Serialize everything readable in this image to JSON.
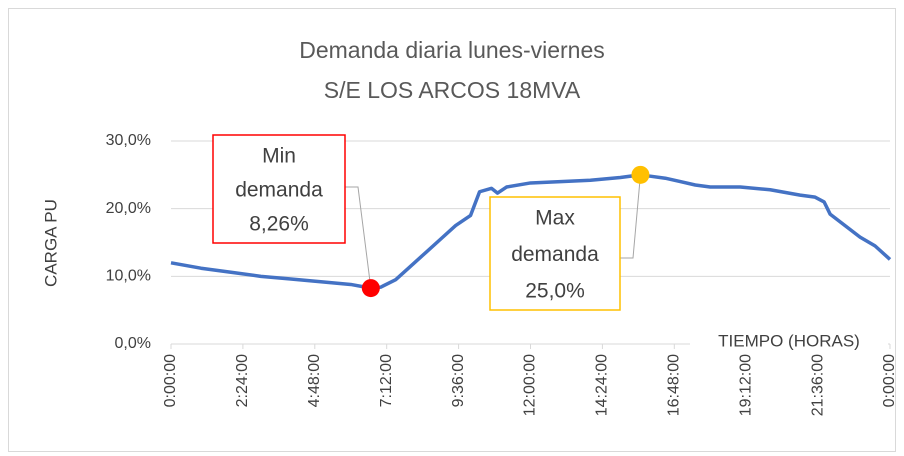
{
  "chart_data": {
    "type": "line",
    "title": "Demanda diaria lunes-viernes",
    "subtitle": "S/E LOS ARCOS 18MVA",
    "y_label": "CARGA PU",
    "x_label": "TIEMPO (HORAS)",
    "xlim": [
      0,
      24
    ],
    "xticks": [
      {
        "value": 0,
        "label": "0:00:00"
      },
      {
        "value": 2.4,
        "label": "2:24:00"
      },
      {
        "value": 4.8,
        "label": "4:48:00"
      },
      {
        "value": 7.2,
        "label": "7:12:00"
      },
      {
        "value": 9.6,
        "label": "9:36:00"
      },
      {
        "value": 12,
        "label": "12:00:00"
      },
      {
        "value": 14.4,
        "label": "14:24:00"
      },
      {
        "value": 16.8,
        "label": "16:48:00"
      },
      {
        "value": 19.2,
        "label": "19:12:00"
      },
      {
        "value": 21.6,
        "label": "21:36:00"
      },
      {
        "value": 24,
        "label": "0:00:00"
      }
    ],
    "ylim": [
      0,
      30
    ],
    "yticks": [
      {
        "value": 0,
        "label": "0,0%"
      },
      {
        "value": 10,
        "label": "10,0%"
      },
      {
        "value": 20,
        "label": "20,0%"
      },
      {
        "value": 30,
        "label": "30,0%"
      }
    ],
    "grid": true,
    "series": [
      {
        "color": "#4472c4",
        "x": [
          0,
          1,
          2,
          3,
          4,
          5,
          6,
          6.67,
          7,
          7.5,
          8,
          8.5,
          9,
          9.5,
          10,
          10.3,
          10.7,
          10.9,
          11.2,
          12,
          13,
          14,
          15,
          15.67,
          16,
          16.5,
          17,
          17.5,
          18,
          19,
          20,
          21,
          21.5,
          21.8,
          22,
          22.5,
          23,
          23.5,
          24
        ],
        "values": [
          12.0,
          11.2,
          10.6,
          10.0,
          9.6,
          9.2,
          8.8,
          8.26,
          8.4,
          9.5,
          11.5,
          13.5,
          15.5,
          17.5,
          19.0,
          22.5,
          23.0,
          22.3,
          23.2,
          23.8,
          24.0,
          24.2,
          24.6,
          25.0,
          24.8,
          24.5,
          24.0,
          23.5,
          23.2,
          23.2,
          22.8,
          22.0,
          21.7,
          21.0,
          19.2,
          17.5,
          15.8,
          14.5,
          12.5
        ]
      }
    ],
    "annotations": [
      {
        "lines": [
          "Min",
          "demanda",
          "8,26%"
        ],
        "x": 6.67,
        "y": 8.26,
        "color": "#ff0000"
      },
      {
        "lines": [
          "Max",
          "demanda",
          "25,0%"
        ],
        "x": 15.67,
        "y": 25.0,
        "color": "#ffc000"
      }
    ]
  }
}
